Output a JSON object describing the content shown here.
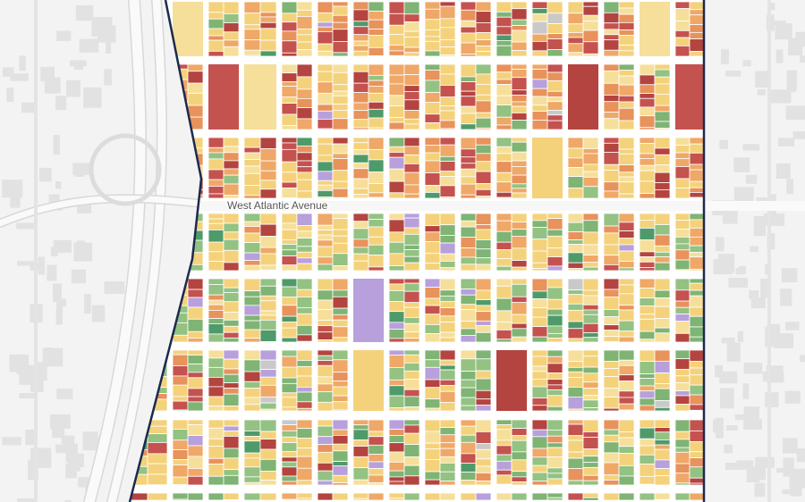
{
  "map": {
    "street_label": "West Atlantic Avenue"
  }
}
